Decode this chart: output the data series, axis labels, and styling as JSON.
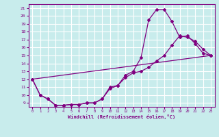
{
  "xlabel": "Windchill (Refroidissement éolien,°C)",
  "bg_color": "#c8ecec",
  "grid_color": "#ffffff",
  "line_color": "#800080",
  "xlim": [
    -0.5,
    23.5
  ],
  "ylim": [
    8.5,
    21.5
  ],
  "xticks": [
    0,
    1,
    2,
    3,
    4,
    5,
    6,
    7,
    8,
    9,
    10,
    11,
    12,
    13,
    14,
    15,
    16,
    17,
    18,
    19,
    20,
    21,
    22,
    23
  ],
  "yticks": [
    9,
    10,
    11,
    12,
    13,
    14,
    15,
    16,
    17,
    18,
    19,
    20,
    21
  ],
  "curve1_x": [
    0,
    1,
    2,
    3,
    4,
    5,
    6,
    7,
    8,
    9,
    10,
    11,
    12,
    13,
    14,
    15,
    16,
    17,
    18,
    19,
    20,
    21,
    22,
    23
  ],
  "curve1_y": [
    12,
    10,
    9.5,
    8.7,
    8.7,
    8.8,
    8.8,
    9.0,
    9.0,
    9.5,
    11.0,
    11.2,
    12.5,
    13.0,
    14.7,
    19.5,
    20.8,
    20.8,
    19.3,
    17.3,
    17.5,
    16.5,
    15.3,
    15.0
  ],
  "curve2_x": [
    0,
    1,
    2,
    3,
    4,
    5,
    6,
    7,
    8,
    9,
    10,
    11,
    12,
    13,
    14,
    15,
    16,
    17,
    18,
    19,
    20,
    21,
    22,
    23
  ],
  "curve2_y": [
    12,
    10,
    9.5,
    8.7,
    8.7,
    8.8,
    8.8,
    9.0,
    9.0,
    9.5,
    10.8,
    11.2,
    12.2,
    12.8,
    13.0,
    13.5,
    14.3,
    15.0,
    16.3,
    17.5,
    17.3,
    16.8,
    15.8,
    15.0
  ],
  "curve3_x": [
    0,
    23
  ],
  "curve3_y": [
    12,
    15.0
  ],
  "figsize": [
    3.2,
    2.0
  ],
  "dpi": 100
}
